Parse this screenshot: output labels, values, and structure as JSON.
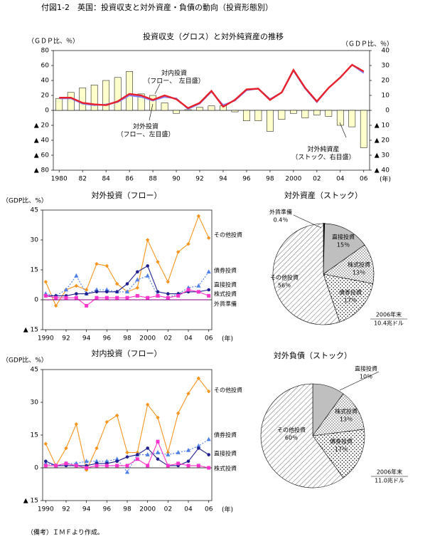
{
  "title": "付図1-2　英国：投資収支と対外資産・負債の動向（投資形態別）",
  "footnote": "（備考）ＩＭＦより作成。",
  "chart_data": [
    {
      "type": "combo",
      "title": "投資収支（グロス）と対外純資産の推移",
      "ylabel": "（ＧＤＰ比、％）",
      "y2label": "（ＧＤＰ比、％）",
      "xlabel": "(年)",
      "x": [
        1980,
        1981,
        1982,
        1983,
        1984,
        1985,
        1986,
        1987,
        1988,
        1989,
        1990,
        1991,
        1992,
        1993,
        1994,
        1995,
        1996,
        1997,
        1998,
        1999,
        2000,
        2001,
        2002,
        2003,
        2004,
        2005,
        2006
      ],
      "xlim": [
        1979.5,
        2006.5
      ],
      "xticks": [
        1980,
        {
          "value": 1982,
          "label": "82"
        },
        {
          "value": 1984,
          "label": "84"
        },
        {
          "value": 1986,
          "label": "86"
        },
        {
          "value": 1988,
          "label": "88"
        },
        {
          "value": 1990,
          "label": "90"
        },
        {
          "value": 1992,
          "label": "92"
        },
        {
          "value": 1994,
          "label": "94"
        },
        {
          "value": 1996,
          "label": "96"
        },
        {
          "value": 1998,
          "label": "98"
        },
        2000,
        {
          "value": 2002,
          "label": "02"
        },
        {
          "value": 2004,
          "label": "04"
        },
        {
          "value": 2006,
          "label": "06"
        }
      ],
      "ylim": [
        -80,
        80
      ],
      "yticks": [
        {
          "value": -80,
          "label": "▲ 80"
        },
        {
          "value": -60,
          "label": "▲ 60"
        },
        {
          "value": -40,
          "label": "▲ 40"
        },
        {
          "value": -20,
          "label": "▲ 20"
        },
        0,
        20,
        40,
        60,
        80
      ],
      "y2lim": [
        -40,
        40
      ],
      "y2ticks": [
        {
          "value": -40,
          "label": "▲ 40"
        },
        {
          "value": -30,
          "label": "▲ 30"
        },
        {
          "value": -20,
          "label": "▲ 20"
        },
        {
          "value": -10,
          "label": "▲ 10"
        },
        0,
        10,
        20,
        30,
        40
      ],
      "series": [
        {
          "name": "対外純資産",
          "note": "（ストック、右目盛）",
          "type": "bar",
          "axis": "y2",
          "color": "#ffffcc",
          "values": [
            8,
            12,
            15,
            17,
            20,
            22,
            26,
            11,
            10,
            5,
            -2,
            0.5,
            2,
            3,
            3,
            -1,
            -7,
            -7,
            -14,
            -6,
            -2,
            -5,
            -3,
            -4,
            -10,
            -11,
            -25
          ]
        },
        {
          "name": "対内投資",
          "note": "（フロー、　左目盛）",
          "type": "line",
          "axis": "y",
          "color": "#8080ff",
          "values": [
            16,
            16,
            9,
            7,
            8,
            11,
            20,
            18,
            13,
            18,
            16,
            2,
            9,
            25,
            7,
            13,
            27,
            29,
            15,
            24,
            53,
            29,
            11,
            30,
            44,
            61,
            50
          ]
        },
        {
          "name": "対外投資",
          "note": "（フロー、左目盛）",
          "type": "line",
          "axis": "y",
          "color": "#e8202a",
          "values": [
            17,
            17,
            10,
            8,
            7,
            12,
            22,
            20,
            14,
            20,
            15,
            3,
            10,
            26,
            5,
            14,
            28,
            29,
            14,
            24,
            54,
            30,
            12,
            30,
            44,
            61,
            52
          ]
        }
      ]
    },
    {
      "type": "line",
      "title": "対外投資（フロー）",
      "ylabel": "（GDP比、%）",
      "xlabel": "(年)",
      "x": [
        1990,
        1991,
        1992,
        1993,
        1994,
        1995,
        1996,
        1997,
        1998,
        1999,
        2000,
        2001,
        2002,
        2003,
        2004,
        2005,
        2006
      ],
      "xlim": [
        1989.7,
        2006.3
      ],
      "xticks": [
        1990,
        {
          "value": 1992,
          "label": "92"
        },
        {
          "value": 1994,
          "label": "94"
        },
        {
          "value": 1996,
          "label": "96"
        },
        {
          "value": 1998,
          "label": "98"
        },
        2000,
        {
          "value": 2002,
          "label": "02"
        },
        {
          "value": 2004,
          "label": "04"
        },
        {
          "value": 2006,
          "label": "06"
        }
      ],
      "ylim": [
        -15,
        45
      ],
      "yticks": [
        {
          "value": -15,
          "label": "▲ 15"
        },
        0,
        15,
        30,
        45
      ],
      "series": [
        {
          "name": "その他投資",
          "color": "#f7941d",
          "marker": "diamond",
          "dash": "none",
          "values": [
            9,
            -3,
            5,
            7,
            5,
            18,
            17,
            8,
            4,
            6,
            30,
            19,
            9,
            24,
            28,
            42,
            31
          ]
        },
        {
          "name": "債券投資",
          "color": "#4f81e8",
          "marker": "triangle",
          "dash": "2,2",
          "values": [
            3,
            2,
            5,
            12,
            3,
            5,
            5,
            4,
            4,
            10,
            12,
            2,
            1,
            3,
            6,
            7,
            14
          ]
        },
        {
          "name": "直接投資",
          "color": "#1f1f8f",
          "marker": "circle",
          "dash": "none",
          "values": [
            2,
            2,
            2,
            3,
            3,
            4,
            4,
            4,
            8,
            14,
            17,
            4,
            3,
            3,
            4,
            4,
            5
          ]
        },
        {
          "name": "株式投資",
          "color": "#ff33cc",
          "marker": "square",
          "dash": "none",
          "values": [
            2,
            1,
            1,
            1,
            -3,
            1,
            1,
            1,
            1,
            2,
            1,
            2,
            1,
            2,
            5,
            4,
            2
          ]
        },
        {
          "name": "外貨準備",
          "color": "#800080",
          "marker": "none",
          "dash": "none",
          "values": [
            0,
            0,
            0,
            0,
            0,
            0,
            0,
            0,
            0,
            0,
            0,
            0,
            0,
            0,
            0,
            0,
            0
          ]
        }
      ]
    },
    {
      "type": "line",
      "title": "対内投資（フロー）",
      "ylabel": "（GDP比、%）",
      "xlabel": "(年)",
      "x": [
        1990,
        1991,
        1992,
        1993,
        1994,
        1995,
        1996,
        1997,
        1998,
        1999,
        2000,
        2001,
        2002,
        2003,
        2004,
        2005,
        2006
      ],
      "xlim": [
        1989.7,
        2006.3
      ],
      "xticks": [
        1990,
        {
          "value": 1992,
          "label": "92"
        },
        {
          "value": 1994,
          "label": "94"
        },
        {
          "value": 1996,
          "label": "96"
        },
        {
          "value": 1998,
          "label": "98"
        },
        2000,
        {
          "value": 2002,
          "label": "02"
        },
        {
          "value": 2004,
          "label": "04"
        },
        {
          "value": 2006,
          "label": "06"
        }
      ],
      "ylim": [
        -15,
        45
      ],
      "yticks": [
        {
          "value": -15,
          "label": "▲ 15"
        },
        0,
        15,
        30,
        45
      ],
      "series": [
        {
          "name": "その他投資",
          "color": "#f7941d",
          "marker": "diamond",
          "dash": "none",
          "values": [
            11,
            1,
            9,
            20,
            -1,
            9,
            21,
            24,
            7,
            7,
            29,
            23,
            7,
            25,
            34,
            41,
            35
          ]
        },
        {
          "name": "債券投資",
          "color": "#4f81e8",
          "marker": "triangle",
          "dash": "2,2",
          "values": [
            2,
            1,
            2,
            2,
            3,
            3,
            3,
            4,
            -2,
            6,
            6,
            7,
            6,
            7,
            8,
            10,
            13
          ]
        },
        {
          "name": "直接投資",
          "color": "#1f1f8f",
          "marker": "circle",
          "dash": "none",
          "values": [
            3,
            1,
            1,
            1,
            1,
            2,
            2,
            3,
            5,
            6,
            9,
            4,
            1,
            1,
            3,
            9,
            6
          ]
        },
        {
          "name": "株式投資",
          "color": "#ff33cc",
          "marker": "square",
          "dash": "none",
          "values": [
            1,
            1,
            2,
            1,
            0,
            1,
            1,
            1,
            1,
            4,
            1,
            12,
            1,
            2,
            1,
            1,
            0
          ]
        }
      ]
    },
    {
      "type": "pie",
      "title": "対外資産（ストック）",
      "categories": [
        "外貨準備",
        "直接投資",
        "株式投資",
        "債券投資",
        "その他投資"
      ],
      "values": [
        0.4,
        15,
        13,
        17,
        56
      ],
      "value_labels": [
        "0.4％",
        "15％",
        "13％",
        "17％",
        "56％"
      ],
      "colors": [
        "#000000",
        "#bfbfbf",
        "#ffffff",
        "#ffffff",
        "#ffffff"
      ],
      "patterns": [
        "none",
        "none",
        "fine-dots",
        "dots",
        "hatch"
      ],
      "notes": [
        "2006年末",
        "10.4兆ドル"
      ]
    },
    {
      "type": "pie",
      "title": "対外負債（ストック）",
      "categories": [
        "直接投資",
        "株式投資",
        "債券投資",
        "その他投資"
      ],
      "values": [
        10,
        13,
        17,
        60
      ],
      "value_labels": [
        "10％",
        "13％",
        "17％",
        "60％"
      ],
      "colors": [
        "#bfbfbf",
        "#ffffff",
        "#ffffff",
        "#ffffff"
      ],
      "patterns": [
        "none",
        "fine-dots",
        "dots",
        "hatch"
      ],
      "notes": [
        "2006年末",
        "11.0兆ドル"
      ]
    }
  ]
}
